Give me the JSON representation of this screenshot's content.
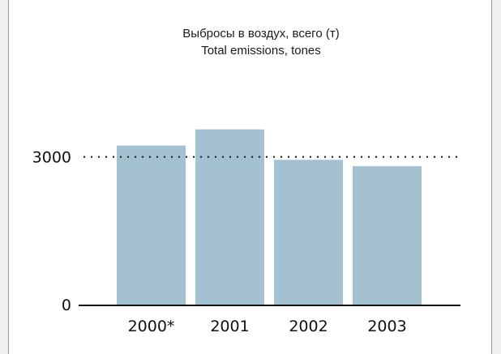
{
  "chart_data": {
    "type": "bar",
    "title_lines": [
      "Выбросы в воздух, всего (т)",
      "Total emissions, tones"
    ],
    "categories": [
      "2000*",
      "2001",
      "2002",
      "2003"
    ],
    "values": [
      3230,
      3560,
      2940,
      2810
    ],
    "ylim": [
      0,
      5200
    ],
    "ytick_values": [
      0,
      3000
    ],
    "ytick_labels": [
      "0",
      "3000"
    ],
    "reference_line": {
      "value": 3000,
      "style": "dotted"
    },
    "grid": false,
    "legend": "none",
    "colors": {
      "bar": "#a3c1d1",
      "axis": "#111111",
      "text": "#111111",
      "reference_line": "#222222"
    }
  }
}
